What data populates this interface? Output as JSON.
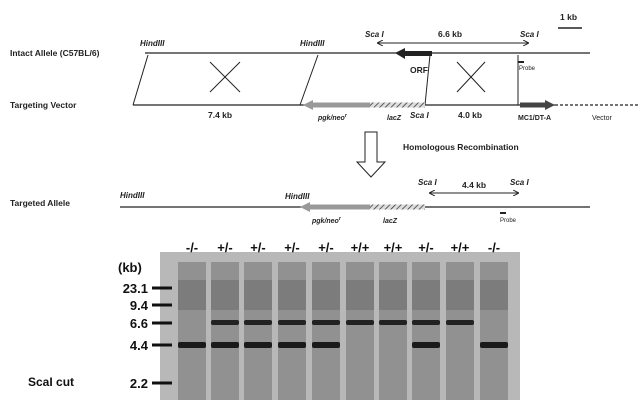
{
  "scale_bar": "1 kb",
  "intact_allele": {
    "label": "Intact Allele (C57BL/6)",
    "hindiii_left": "HindIII",
    "hindiii_right": "HindIII",
    "sca_left": "Sca I",
    "sca_right": "Sca I",
    "distance": "6.6 kb",
    "orf": "ORF",
    "probe": "Probe"
  },
  "targeting_vector": {
    "label": "Targeting Vector",
    "left_arm": "7.4 kb",
    "neo": "pgk/neo",
    "neo_sup": "r",
    "lacz": "lacZ",
    "sca": "Sca I",
    "right_arm": "4.0 kb",
    "dta": "MC1/DT-A",
    "vector": "Vector"
  },
  "arrow_label": "Homologous Recombination",
  "targeted_allele": {
    "label": "Targeted Allele",
    "hindiii_left": "HindIII",
    "hindiii_right": "HindIII",
    "sca_left": "Sca I",
    "sca_right": "Sca I",
    "distance": "4.4 kb",
    "neo": "pgk/neo",
    "neo_sup": "r",
    "lacz": "lacZ",
    "probe": "Probe"
  },
  "gel": {
    "unit": "(kb)",
    "markers": [
      "23.1",
      "9.4",
      "6.6",
      "4.4",
      "2.2"
    ],
    "lanes": [
      "-/-",
      "+/-",
      "+/-",
      "+/-",
      "+/-",
      "+/+",
      "+/+",
      "+/-",
      "+/+",
      "-/-"
    ],
    "caption": "ScaI cut"
  }
}
